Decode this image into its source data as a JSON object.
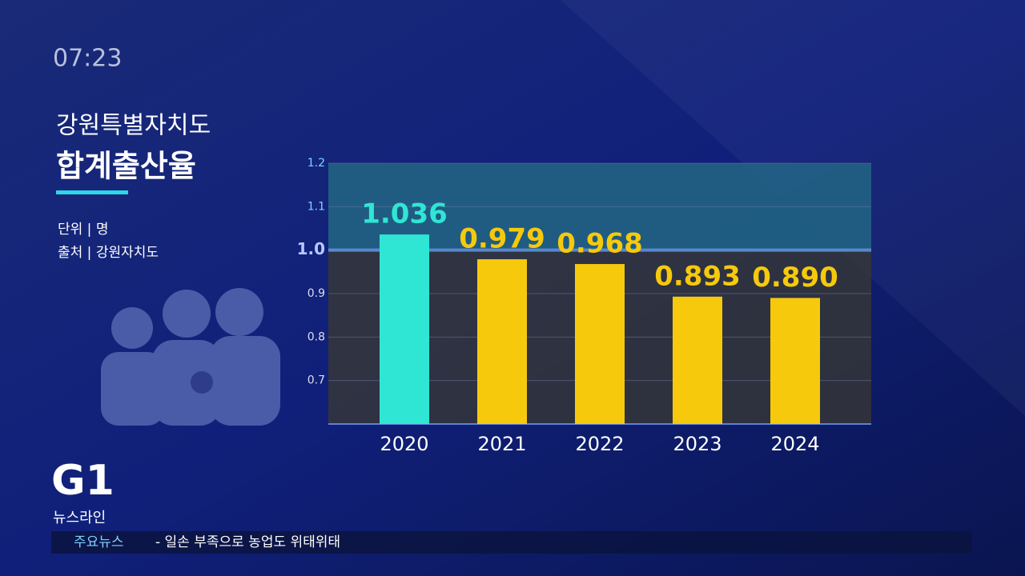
{
  "clock": "07:23",
  "channel": {
    "logo": "G1",
    "program": "뉴스라인"
  },
  "ticker": {
    "label": "주요뉴스",
    "text": "- 일손 부족으로 농업도 위태위태"
  },
  "chart_data": {
    "type": "bar",
    "title": "강원특별자치도",
    "subtitle": "합계출산율",
    "notes": [
      "단위 | 명",
      "출처 | 강원자치도"
    ],
    "categories": [
      "2020",
      "2021",
      "2022",
      "2023",
      "2024"
    ],
    "values": [
      1.036,
      0.979,
      0.968,
      0.893,
      0.89
    ],
    "value_labels": [
      "1.036",
      "0.979",
      "0.968",
      "0.893",
      "0.890"
    ],
    "colors": [
      "#2fe6d4",
      "#f6c90c",
      "#f6c90c",
      "#f6c90c",
      "#f6c90c"
    ],
    "ylim": [
      0.6,
      1.2
    ],
    "yticks": [
      0.7,
      0.8,
      0.9,
      {
        "value": 1,
        "label": "1.0"
      },
      1.1,
      1.2
    ],
    "grid": true
  }
}
